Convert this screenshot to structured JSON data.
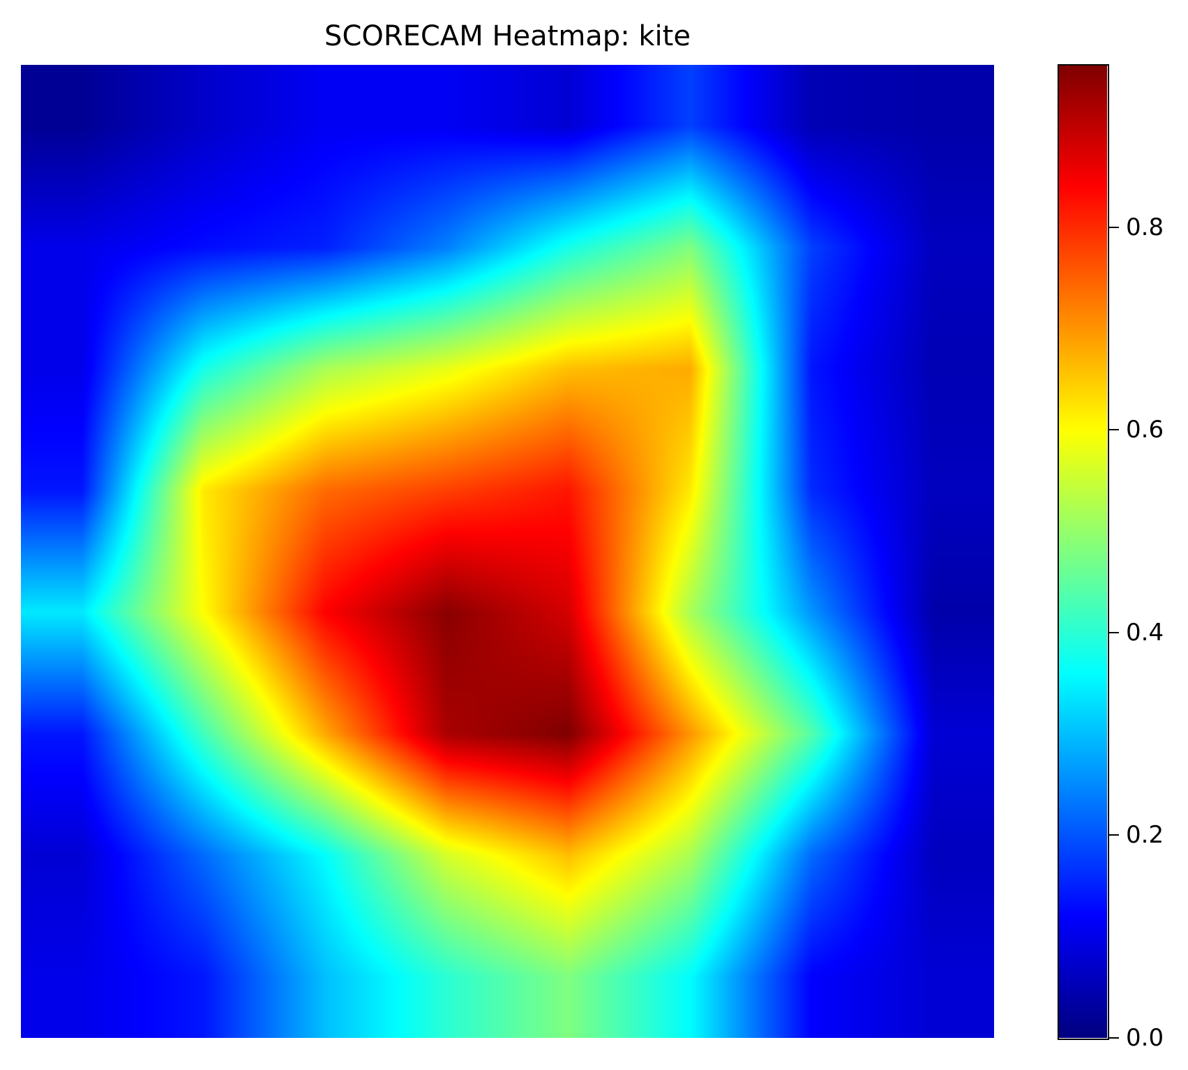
{
  "chart_data": {
    "type": "heatmap",
    "title": "SCORECAM Heatmap: kite",
    "colormap": "jet",
    "axes_visible": false,
    "grid": false,
    "value_range": [
      0.0,
      0.96
    ],
    "colorbar": {
      "position": "right",
      "ticks": [
        {
          "value": 0.0,
          "label": "0.0"
        },
        {
          "value": 0.2,
          "label": "0.2"
        },
        {
          "value": 0.4,
          "label": "0.4"
        },
        {
          "value": 0.6,
          "label": "0.6"
        },
        {
          "value": 0.8,
          "label": "0.8"
        }
      ]
    },
    "grid_size": [
      8,
      8
    ],
    "values": [
      [
        0.02,
        0.07,
        0.11,
        0.11,
        0.08,
        0.18,
        0.05,
        0.04
      ],
      [
        0.1,
        0.13,
        0.15,
        0.24,
        0.38,
        0.48,
        0.18,
        0.06
      ],
      [
        0.1,
        0.38,
        0.52,
        0.58,
        0.66,
        0.68,
        0.14,
        0.05
      ],
      [
        0.14,
        0.62,
        0.74,
        0.78,
        0.82,
        0.62,
        0.16,
        0.06
      ],
      [
        0.34,
        0.6,
        0.84,
        0.95,
        0.88,
        0.52,
        0.26,
        0.04
      ],
      [
        0.14,
        0.42,
        0.68,
        0.92,
        0.96,
        0.7,
        0.44,
        0.08
      ],
      [
        0.08,
        0.22,
        0.36,
        0.56,
        0.66,
        0.52,
        0.22,
        0.06
      ],
      [
        0.1,
        0.14,
        0.3,
        0.4,
        0.48,
        0.36,
        0.12,
        0.08
      ]
    ]
  }
}
